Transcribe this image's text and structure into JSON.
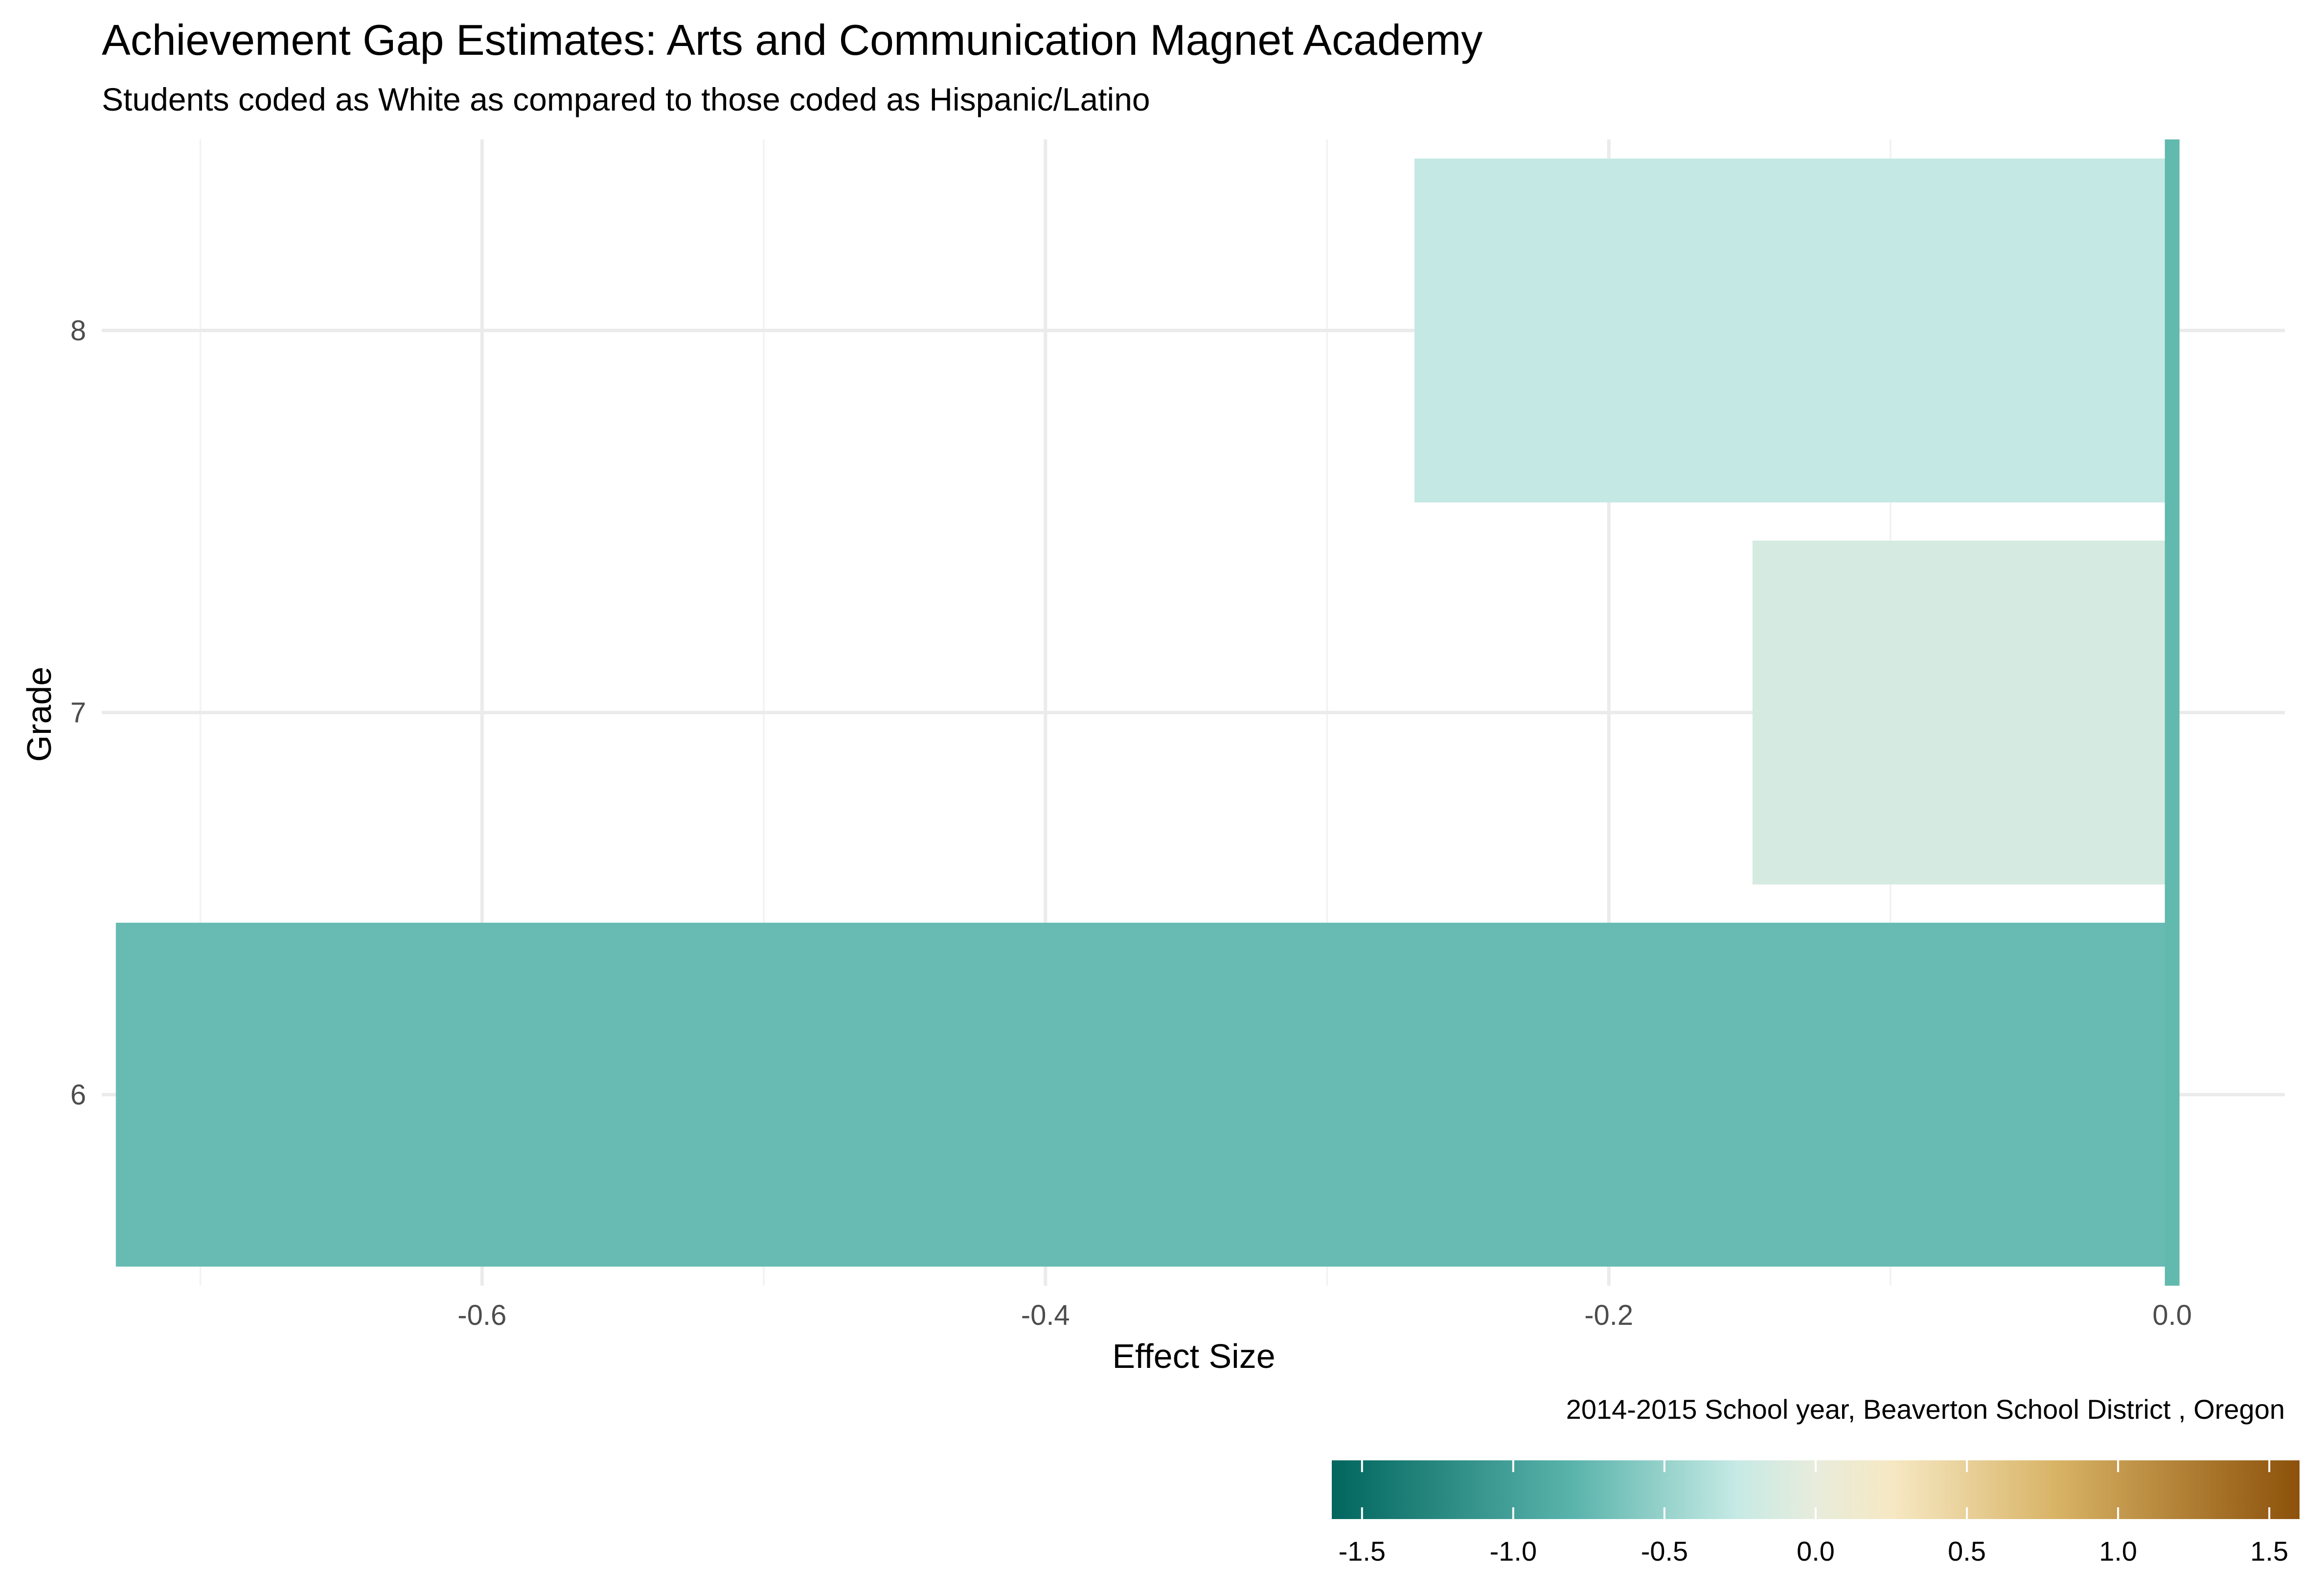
{
  "chart_data": {
    "type": "bar",
    "orientation": "horizontal",
    "title": "Achievement Gap Estimates: Arts and Communication Magnet Academy",
    "subtitle": "Students coded as White as compared to those coded as Hispanic/Latino",
    "xlabel": "Effect Size",
    "ylabel": "Grade",
    "caption": "2014-2015 School year,  Beaverton School District , Oregon",
    "categories": [
      "6",
      "7",
      "8"
    ],
    "values": [
      -0.73,
      -0.149,
      -0.269
    ],
    "xlim": [
      -0.735,
      0.04
    ],
    "x_ticks": [
      "-0.6",
      "-0.4",
      "-0.2",
      "0.0"
    ],
    "x_tick_values": [
      -0.6,
      -0.4,
      -0.2,
      0.0
    ],
    "reference_line": 0.0,
    "grid": true,
    "colors": {
      "reference_line": "#62b9ad",
      "gradient_low": "#01665e",
      "gradient_mid_low": "#5ab4ac",
      "gradient_mid": "#f5f5f5",
      "gradient_mid_high": "#d8b365",
      "gradient_high": "#8c510a"
    },
    "legend": {
      "position": "bottom-right",
      "type": "colorbar",
      "range": [
        -1.6,
        1.6
      ],
      "ticks": [
        "-1.5",
        "-1.0",
        "-0.5",
        "0.0",
        "0.5",
        "1.0",
        "1.5"
      ],
      "tick_values": [
        -1.5,
        -1.0,
        -0.5,
        0.0,
        0.5,
        1.0,
        1.5
      ]
    }
  }
}
